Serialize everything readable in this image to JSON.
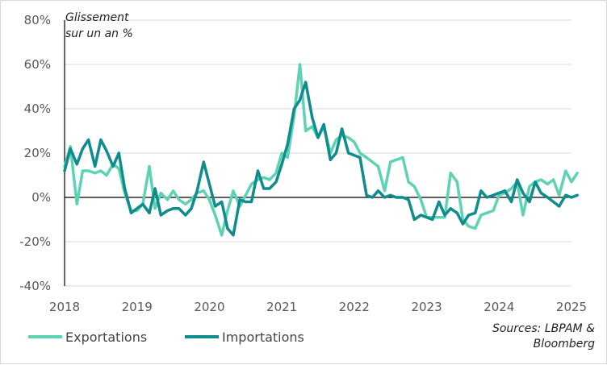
{
  "chart_data": {
    "type": "line",
    "ylabel_line1": "Glissement",
    "ylabel_line2": "sur un an %",
    "ylim": [
      -40,
      80
    ],
    "yticks": [
      80,
      60,
      40,
      20,
      0,
      -20,
      -40
    ],
    "ytick_labels": [
      "80%",
      "60%",
      "40%",
      "20%",
      "0%",
      "-20%",
      "-40%"
    ],
    "xlim": [
      2018,
      2025
    ],
    "xticks": [
      "2018",
      "2019",
      "2020",
      "2021",
      "2022",
      "2023",
      "2024",
      "2025"
    ],
    "source_line1": "Sources: LBPAM &",
    "source_line2": "Bloomberg",
    "series": [
      {
        "name": "Exportations",
        "color": "#5ED3B4",
        "points": [
          [
            2018.0,
            14
          ],
          [
            2018.08,
            23
          ],
          [
            2018.17,
            -3
          ],
          [
            2018.25,
            12
          ],
          [
            2018.33,
            12
          ],
          [
            2018.42,
            11
          ],
          [
            2018.5,
            12
          ],
          [
            2018.58,
            10
          ],
          [
            2018.67,
            15
          ],
          [
            2018.75,
            13
          ],
          [
            2018.83,
            2
          ],
          [
            2018.92,
            -6
          ],
          [
            2019.0,
            -6
          ],
          [
            2019.08,
            -3
          ],
          [
            2019.17,
            14
          ],
          [
            2019.25,
            -5
          ],
          [
            2019.33,
            2
          ],
          [
            2019.42,
            -1
          ],
          [
            2019.5,
            3
          ],
          [
            2019.58,
            -1
          ],
          [
            2019.67,
            -3
          ],
          [
            2019.75,
            -1
          ],
          [
            2019.83,
            2
          ],
          [
            2019.92,
            3
          ],
          [
            2020.0,
            -1
          ],
          [
            2020.08,
            -8
          ],
          [
            2020.17,
            -17
          ],
          [
            2020.25,
            -6
          ],
          [
            2020.33,
            3
          ],
          [
            2020.42,
            -4
          ],
          [
            2020.5,
            1
          ],
          [
            2020.58,
            6
          ],
          [
            2020.67,
            8
          ],
          [
            2020.75,
            9
          ],
          [
            2020.83,
            8
          ],
          [
            2020.92,
            11
          ],
          [
            2021.0,
            20
          ],
          [
            2021.08,
            18
          ],
          [
            2021.17,
            37
          ],
          [
            2021.25,
            60
          ],
          [
            2021.33,
            30
          ],
          [
            2021.42,
            32
          ],
          [
            2021.5,
            27
          ],
          [
            2021.58,
            32
          ],
          [
            2021.67,
            20
          ],
          [
            2021.75,
            26
          ],
          [
            2021.83,
            28
          ],
          [
            2021.92,
            27
          ],
          [
            2022.0,
            25
          ],
          [
            2022.08,
            20
          ],
          [
            2022.17,
            18
          ],
          [
            2022.25,
            16
          ],
          [
            2022.33,
            14
          ],
          [
            2022.42,
            3
          ],
          [
            2022.5,
            16
          ],
          [
            2022.58,
            17
          ],
          [
            2022.67,
            18
          ],
          [
            2022.75,
            7
          ],
          [
            2022.83,
            5
          ],
          [
            2022.92,
            -1
          ],
          [
            2023.0,
            -9
          ],
          [
            2023.08,
            -9
          ],
          [
            2023.17,
            -9
          ],
          [
            2023.25,
            -9
          ],
          [
            2023.33,
            11
          ],
          [
            2023.42,
            7
          ],
          [
            2023.5,
            -10
          ],
          [
            2023.58,
            -13
          ],
          [
            2023.67,
            -14
          ],
          [
            2023.75,
            -8
          ],
          [
            2023.83,
            -7
          ],
          [
            2023.92,
            -6
          ],
          [
            2024.0,
            1
          ],
          [
            2024.08,
            2
          ],
          [
            2024.17,
            4
          ],
          [
            2024.25,
            7
          ],
          [
            2024.33,
            -8
          ],
          [
            2024.42,
            5
          ],
          [
            2024.5,
            7
          ],
          [
            2024.58,
            8
          ],
          [
            2024.67,
            6
          ],
          [
            2024.75,
            8
          ],
          [
            2024.83,
            1
          ],
          [
            2024.92,
            12
          ],
          [
            2025.0,
            7
          ],
          [
            2025.08,
            11
          ]
        ]
      },
      {
        "name": "Importations",
        "color": "#0F8C8C",
        "points": [
          [
            2018.0,
            12
          ],
          [
            2018.08,
            22
          ],
          [
            2018.17,
            15
          ],
          [
            2018.25,
            22
          ],
          [
            2018.33,
            26
          ],
          [
            2018.42,
            14
          ],
          [
            2018.5,
            26
          ],
          [
            2018.58,
            21
          ],
          [
            2018.67,
            14
          ],
          [
            2018.75,
            20
          ],
          [
            2018.83,
            4
          ],
          [
            2018.92,
            -7
          ],
          [
            2019.0,
            -5
          ],
          [
            2019.08,
            -3
          ],
          [
            2019.17,
            -7
          ],
          [
            2019.25,
            4
          ],
          [
            2019.33,
            -8
          ],
          [
            2019.42,
            -6
          ],
          [
            2019.5,
            -5
          ],
          [
            2019.58,
            -5
          ],
          [
            2019.67,
            -8
          ],
          [
            2019.75,
            -5
          ],
          [
            2019.83,
            3
          ],
          [
            2019.92,
            16
          ],
          [
            2020.0,
            6
          ],
          [
            2020.08,
            -4
          ],
          [
            2020.17,
            -2
          ],
          [
            2020.25,
            -14
          ],
          [
            2020.33,
            -17
          ],
          [
            2020.42,
            -1
          ],
          [
            2020.5,
            -2
          ],
          [
            2020.58,
            -2
          ],
          [
            2020.67,
            12
          ],
          [
            2020.75,
            4
          ],
          [
            2020.83,
            4
          ],
          [
            2020.92,
            7
          ],
          [
            2021.0,
            15
          ],
          [
            2021.08,
            24
          ],
          [
            2021.17,
            40
          ],
          [
            2021.25,
            44
          ],
          [
            2021.33,
            52
          ],
          [
            2021.42,
            36
          ],
          [
            2021.5,
            27
          ],
          [
            2021.58,
            33
          ],
          [
            2021.67,
            17
          ],
          [
            2021.75,
            20
          ],
          [
            2021.83,
            31
          ],
          [
            2021.92,
            20
          ],
          [
            2022.0,
            19
          ],
          [
            2022.08,
            18
          ],
          [
            2022.17,
            1
          ],
          [
            2022.25,
            0
          ],
          [
            2022.33,
            3
          ],
          [
            2022.42,
            0
          ],
          [
            2022.5,
            1
          ],
          [
            2022.58,
            0
          ],
          [
            2022.67,
            0
          ],
          [
            2022.75,
            -1
          ],
          [
            2022.83,
            -10
          ],
          [
            2022.92,
            -8
          ],
          [
            2023.0,
            -9
          ],
          [
            2023.08,
            -10
          ],
          [
            2023.17,
            -2
          ],
          [
            2023.25,
            -8
          ],
          [
            2023.33,
            -5
          ],
          [
            2023.42,
            -7
          ],
          [
            2023.5,
            -12
          ],
          [
            2023.58,
            -8
          ],
          [
            2023.67,
            -7
          ],
          [
            2023.75,
            3
          ],
          [
            2023.83,
            0
          ],
          [
            2023.92,
            1
          ],
          [
            2024.0,
            2
          ],
          [
            2024.08,
            3
          ],
          [
            2024.17,
            -2
          ],
          [
            2024.25,
            8
          ],
          [
            2024.33,
            2
          ],
          [
            2024.42,
            -2
          ],
          [
            2024.5,
            7
          ],
          [
            2024.58,
            2
          ],
          [
            2024.67,
            0
          ],
          [
            2024.75,
            -2
          ],
          [
            2024.83,
            -4
          ],
          [
            2024.92,
            1
          ],
          [
            2025.0,
            0
          ],
          [
            2025.08,
            1
          ]
        ]
      }
    ]
  }
}
